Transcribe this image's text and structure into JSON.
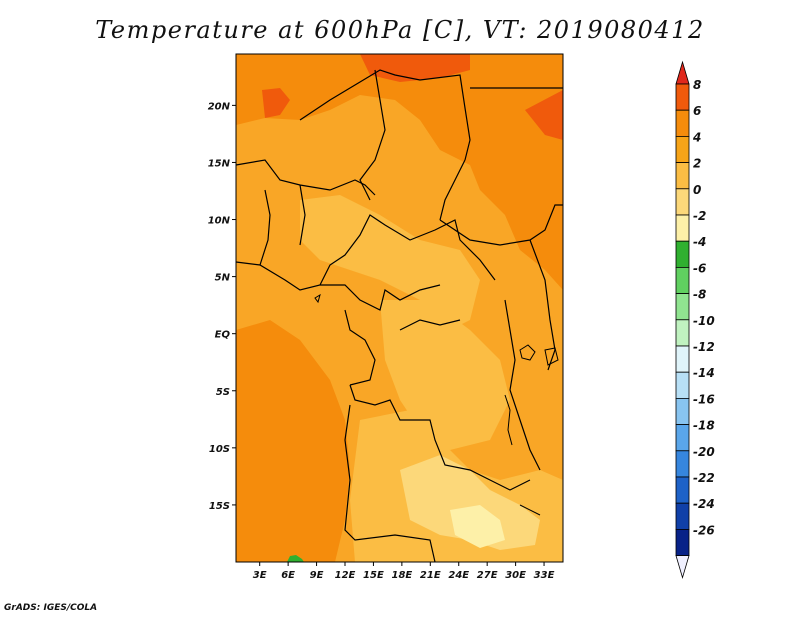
{
  "title": "Temperature at 600hPa [C], VT: 2019080412",
  "credit": "GrADS: IGES/COLA",
  "map": {
    "lat_labels": [
      "20N",
      "15N",
      "10N",
      "5N",
      "EQ",
      "5S",
      "10S",
      "15S"
    ],
    "lon_labels": [
      "3E",
      "6E",
      "9E",
      "12E",
      "15E",
      "18E",
      "21E",
      "24E",
      "27E",
      "30E",
      "33E"
    ],
    "lat_values": [
      20,
      15,
      10,
      5,
      0,
      -5,
      -10,
      -15
    ],
    "lon_values": [
      3,
      6,
      9,
      12,
      15,
      18,
      21,
      24,
      27,
      30,
      33
    ],
    "lat_range": [
      -20,
      24.5
    ],
    "lon_range": [
      0.5,
      35
    ]
  },
  "colorbar": {
    "labels": [
      "8",
      "6",
      "4",
      "2",
      "0",
      "-2",
      "-4",
      "-6",
      "-8",
      "-10",
      "-12",
      "-14",
      "-16",
      "-18",
      "-20",
      "-22",
      "-24",
      "-26"
    ],
    "colors": [
      "#e0281c",
      "#f05a0c",
      "#f58c0c",
      "#f7a418",
      "#fbbd44",
      "#fcd87a",
      "#fdf0a8",
      "#30b030",
      "#60d060",
      "#90e490",
      "#c0f2c0",
      "#e0f4fa",
      "#b8e0f6",
      "#88c4f0",
      "#5aa6ea",
      "#3686de",
      "#1e62c8",
      "#1040a8",
      "#082288",
      "#f0f0ff"
    ]
  },
  "colors": {
    "base": "#f9a626",
    "warm": "#f58c0c",
    "hot": "#f05a0c",
    "mild": "#fbbd44",
    "cool": "#fcd87a",
    "cooler": "#fdf0a8",
    "green": "#30b030"
  }
}
